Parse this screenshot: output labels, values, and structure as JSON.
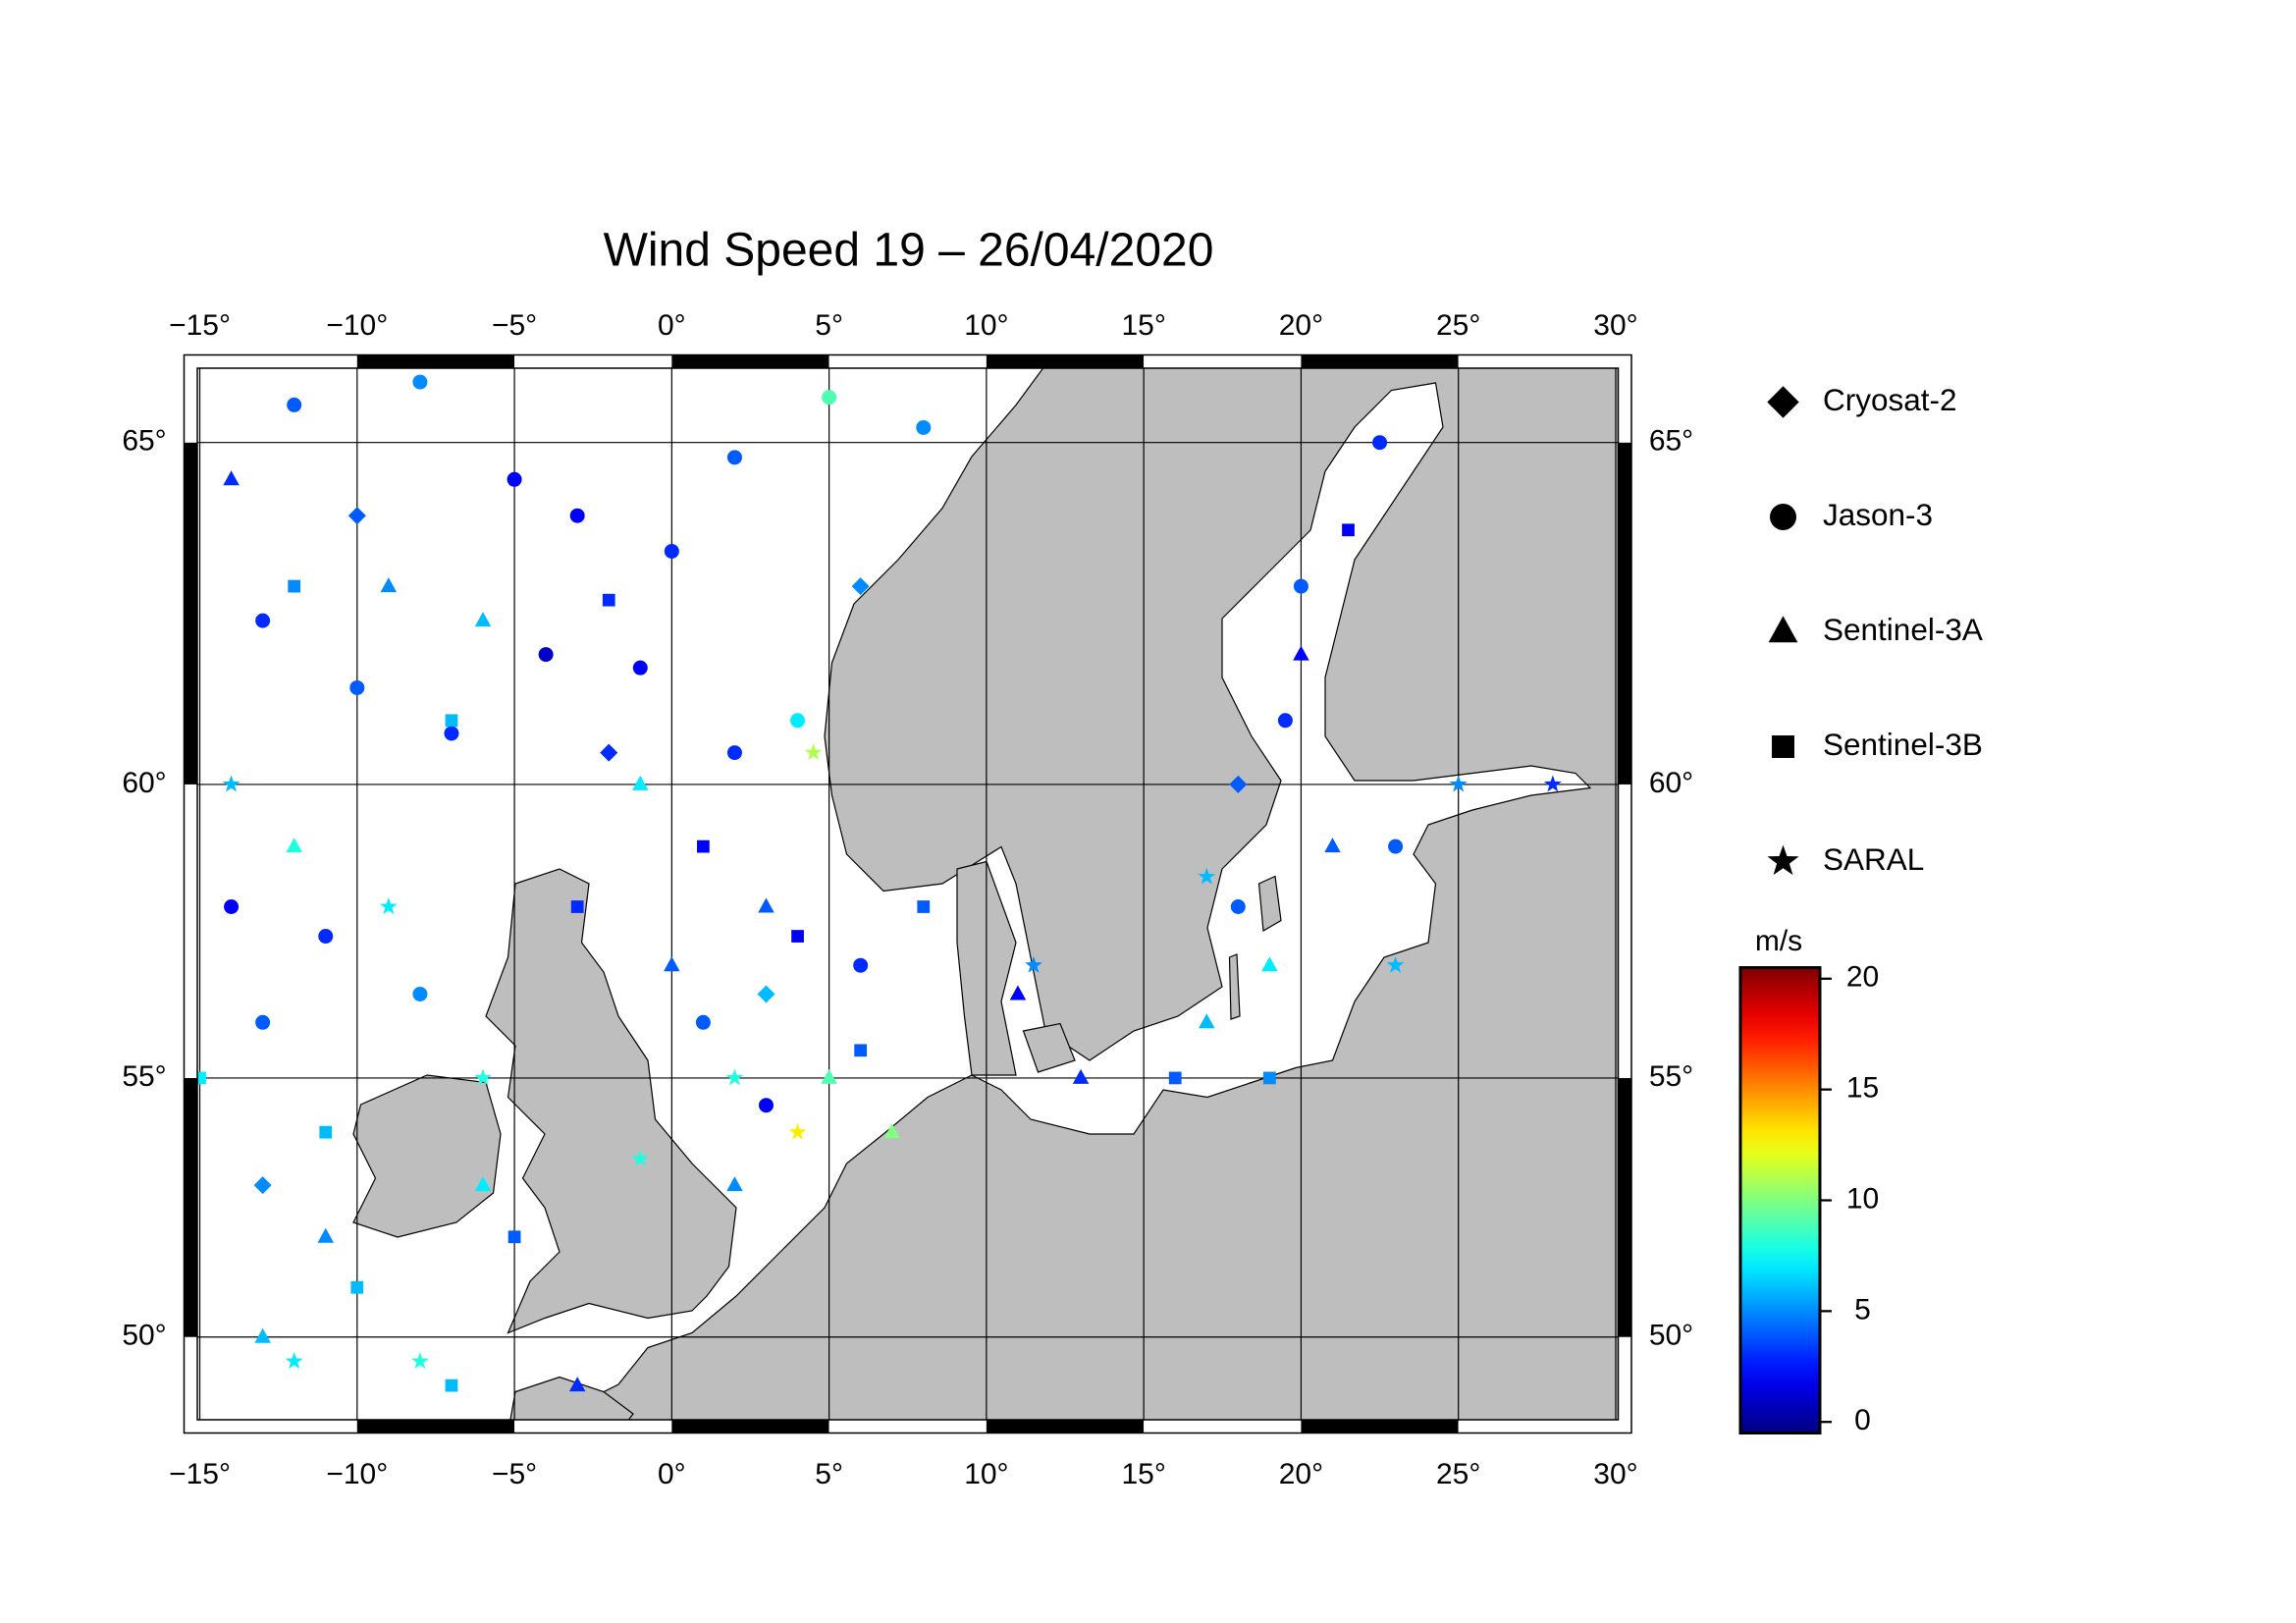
{
  "chart_data": {
    "type": "map",
    "title": "Wind Speed 19 – 26/04/2020",
    "projection": "mercator",
    "xlim": [
      -15.5,
      30.5
    ],
    "ylim": [
      48,
      66.15
    ],
    "xticks": [
      {
        "value": -15,
        "label": "−15°"
      },
      {
        "value": -10,
        "label": "−10°"
      },
      {
        "value": -5,
        "label": "−5°"
      },
      {
        "value": 0,
        "label": "0°"
      },
      {
        "value": 5,
        "label": "5°"
      },
      {
        "value": 10,
        "label": "10°"
      },
      {
        "value": 15,
        "label": "15°"
      },
      {
        "value": 20,
        "label": "20°"
      },
      {
        "value": 25,
        "label": "25°"
      },
      {
        "value": 30,
        "label": "30°"
      }
    ],
    "yticks": [
      {
        "value": 50,
        "label": "50°"
      },
      {
        "value": 55,
        "label": "55°"
      },
      {
        "value": 60,
        "label": "60°"
      },
      {
        "value": 65,
        "label": "65°"
      }
    ],
    "grid": true,
    "colormap": "jet",
    "colorbar_label": "m/s",
    "clim": [
      -0.5,
      20.5
    ],
    "cticks": [
      0,
      5,
      10,
      15,
      20
    ],
    "series": [
      {
        "name": "Cryosat-2",
        "marker": "diamond",
        "x": [
          -10,
          -2,
          3,
          -13,
          18,
          6
        ],
        "y": [
          64,
          60.5,
          56.5,
          53,
          60,
          63
        ],
        "values": [
          4,
          3,
          6,
          5,
          4,
          5
        ]
      },
      {
        "name": "Jason-3",
        "marker": "circle",
        "x": [
          -12,
          -8,
          -5,
          -3,
          0,
          2,
          5,
          8,
          -13,
          -10,
          -7,
          -4,
          -1,
          2,
          4,
          -14,
          -11,
          -8,
          -13,
          1,
          3,
          6,
          20,
          19.5,
          18,
          23,
          22.5
        ],
        "y": [
          65.5,
          65.8,
          64.5,
          64,
          63.5,
          64.8,
          65.6,
          65.2,
          62.5,
          61.5,
          60.8,
          62,
          61.8,
          60.5,
          61,
          58,
          57.5,
          56.5,
          56,
          56,
          54.5,
          57,
          63,
          61,
          58,
          59,
          65
        ],
        "values": [
          4,
          5,
          2,
          2,
          3,
          4,
          9,
          5,
          3,
          4,
          3,
          1,
          2,
          3,
          7,
          2,
          3,
          5,
          4,
          4,
          2,
          3,
          4,
          3,
          4,
          4,
          3
        ]
      },
      {
        "name": "Sentinel-3A",
        "marker": "triangle",
        "x": [
          -14,
          -9,
          -6,
          -1,
          3,
          5,
          7,
          -13,
          -11,
          -6,
          -3,
          11,
          13,
          17,
          19,
          21,
          20,
          -12,
          0,
          2
        ],
        "y": [
          64.5,
          63,
          62.5,
          60,
          58,
          55,
          54,
          50,
          52,
          53,
          49,
          56.5,
          55,
          56,
          57,
          59,
          62,
          59,
          57,
          53
        ],
        "values": [
          3,
          5,
          6,
          7,
          4,
          9,
          10,
          6,
          5,
          7,
          3,
          2,
          3,
          6,
          7,
          4,
          2,
          8,
          4,
          5
        ]
      },
      {
        "name": "Sentinel-3B",
        "marker": "square",
        "x": [
          -12,
          -7,
          -2,
          1,
          4,
          -15,
          -11,
          -10,
          -7,
          -5,
          6,
          16,
          19,
          21.5,
          -3,
          8
        ],
        "y": [
          63,
          61,
          62.8,
          59,
          57.5,
          55,
          54,
          51,
          49,
          52,
          55.5,
          55,
          55,
          63.8,
          58,
          58
        ],
        "values": [
          5,
          6,
          3,
          2,
          2,
          7,
          6,
          6,
          6,
          4,
          4,
          4,
          5,
          2,
          3,
          4
        ]
      },
      {
        "name": "SARAL",
        "marker": "star",
        "x": [
          -14,
          -9,
          -8,
          -12,
          -6,
          4,
          4.5,
          2,
          11.5,
          17,
          23,
          25,
          28,
          -1
        ],
        "y": [
          60,
          58,
          49.5,
          49.5,
          55,
          54,
          60.5,
          55,
          57,
          58.5,
          57,
          60,
          60,
          53.5
        ],
        "values": [
          6,
          7,
          8,
          7,
          8,
          13,
          11,
          8,
          5,
          6,
          6,
          5,
          3,
          8
        ]
      }
    ]
  }
}
